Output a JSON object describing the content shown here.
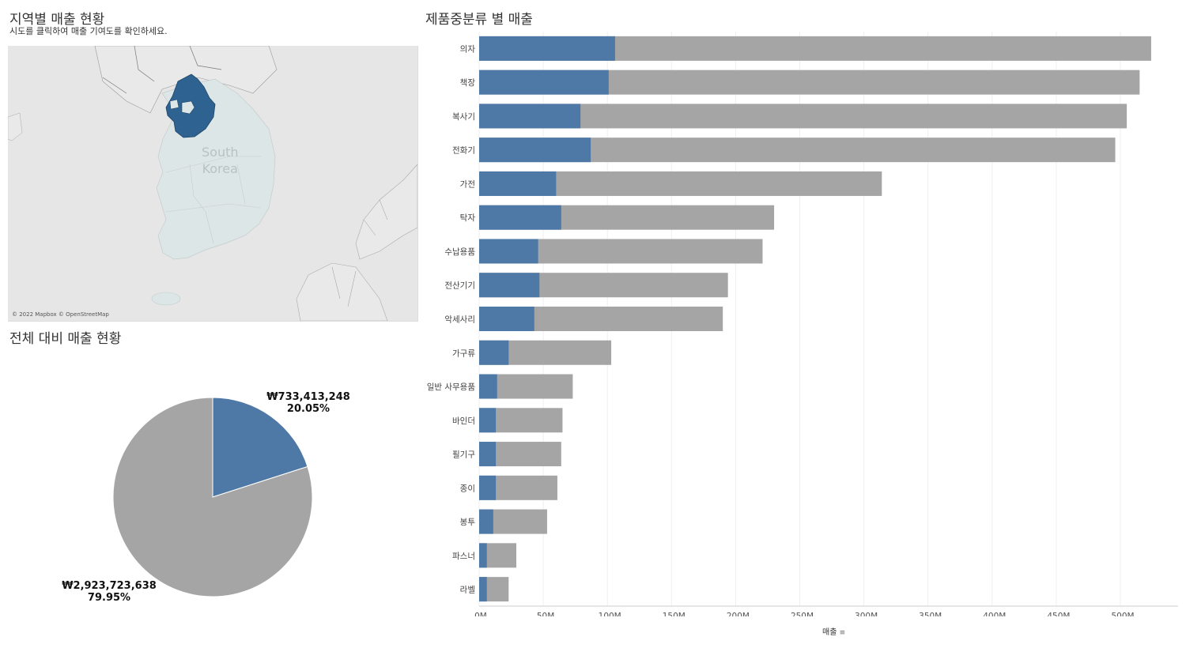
{
  "map_section": {
    "title": "지역별 매출 현황",
    "subtitle": "시도를 클릭하여 매출 기여도를 확인하세요.",
    "country_label_line1": "South",
    "country_label_line2": "Korea",
    "attribution": "© 2022 Mapbox © OpenStreetMap",
    "highlight_color": "#2e6291",
    "land_color": "#dde6e6",
    "background_color": "#e6e6e6"
  },
  "pie_section": {
    "title": "전체 대비 매출 현황"
  },
  "bar_section": {
    "title": "제품중분류 별 매출",
    "axis_title": "매출",
    "sort_icon": "sort-descending-icon"
  },
  "colors": {
    "selected": "#4e79a7",
    "total": "#a5a5a5"
  },
  "chart_data": [
    {
      "type": "pie",
      "title": "전체 대비 매출 현황",
      "slices": [
        {
          "name": "selected",
          "value": 733413248,
          "value_label": "₩733,413,248",
          "pct_label": "20.05%",
          "color": "#4e79a7"
        },
        {
          "name": "others",
          "value": 2923723638,
          "value_label": "₩2,923,723,638",
          "pct_label": "79.95%",
          "color": "#a5a5a5"
        }
      ]
    },
    {
      "type": "bar",
      "orientation": "horizontal",
      "title": "제품중분류 별 매출",
      "xlabel": "매출",
      "xlim": [
        0,
        545
      ],
      "unit": "M",
      "xticks": [
        0,
        50,
        100,
        150,
        200,
        250,
        300,
        350,
        400,
        450,
        500
      ],
      "xtick_labels": [
        "0M",
        "50M",
        "100M",
        "150M",
        "200M",
        "250M",
        "300M",
        "350M",
        "400M",
        "450M",
        "500M"
      ],
      "categories": [
        "의자",
        "책장",
        "복사기",
        "전화기",
        "가전",
        "탁자",
        "수납용품",
        "전산기기",
        "악세사리",
        "가구류",
        "일반 사무용품",
        "바인더",
        "필기구",
        "종이",
        "봉투",
        "파스너",
        "라벨"
      ],
      "series": [
        {
          "name": "total",
          "values": [
            524,
            515,
            505,
            496,
            314,
            230,
            221,
            194,
            190,
            103,
            73,
            65,
            64,
            61,
            53,
            29,
            23
          ]
        },
        {
          "name": "selected",
          "values": [
            106,
            101,
            79,
            87,
            60,
            64,
            46,
            47,
            43,
            23,
            14,
            13,
            13,
            13,
            11,
            6,
            6
          ]
        }
      ]
    }
  ]
}
